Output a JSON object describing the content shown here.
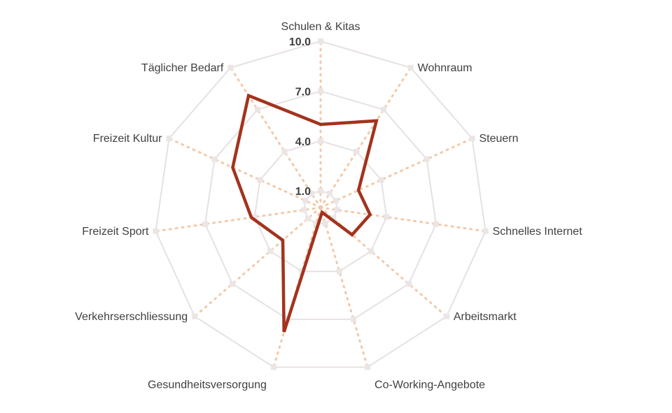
{
  "chart_data": {
    "type": "radar",
    "categories": [
      "Schulen & Kitas",
      "Wohnraum",
      "Steuern",
      "Schnelles Internet",
      "Arbeitsmarkt",
      "Co-Working-Angebote",
      "Gesundheitsversorgung",
      "Verkehrserschliessung",
      "Freizeit Sport",
      "Freizeit Kultur",
      "Täglicher Bedarf"
    ],
    "series": [
      {
        "values": [
          5.0,
          6.2,
          2.5,
          3.0,
          2.5,
          0.3,
          7.8,
          3.0,
          4.2,
          5.8,
          8.0
        ]
      }
    ],
    "rlim": [
      0,
      10
    ],
    "tick_values": [
      1.0,
      4.0,
      7.0,
      10.0
    ],
    "tick_labels": [
      "1.0",
      "4.0",
      "7.0",
      "10.0"
    ],
    "ring_values": [
      1,
      4,
      7,
      10
    ],
    "series_color": "#a3331d",
    "grid": true,
    "legend": "none"
  }
}
